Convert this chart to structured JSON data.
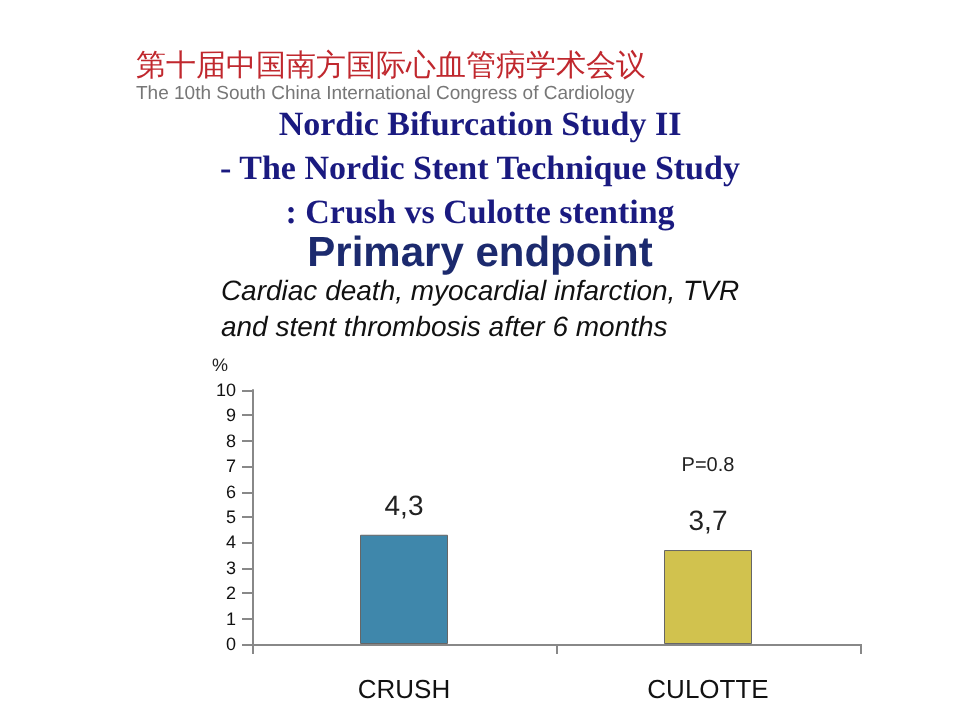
{
  "chart_data": {
    "type": "bar",
    "title": "Nordic Bifurcation Study II\n- The Nordic Stent Technique Study\n: Crush vs Culotte stenting",
    "subtitle": "Primary endpoint",
    "annotations": [
      "第十届中国南方国际心血管病学术会议",
      "The 10th South China International Congress of Cardiology",
      "Cardiac death, myocardial infarction, TVR\nand stent thrombosis after 6 months",
      "P=0.8"
    ],
    "ylabel": "%",
    "categories": [
      "CRUSH",
      "CULOTTE"
    ],
    "values": [
      4.3,
      3.7
    ],
    "colors": [
      "#3f87ab",
      "#d1c24e"
    ],
    "value_labels": [
      "4,3",
      "3,7"
    ],
    "ylim": [
      0,
      10
    ],
    "yticks": [
      0,
      1,
      2,
      3,
      4,
      5,
      6,
      7,
      8,
      9,
      10
    ],
    "grid": false
  }
}
